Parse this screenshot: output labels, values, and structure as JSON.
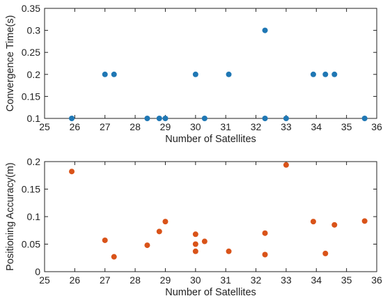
{
  "chart_data": [
    {
      "type": "scatter",
      "xlabel": "Number of Satellites",
      "ylabel": "Convergence  Time(s)",
      "xlim": [
        25,
        36
      ],
      "ylim": [
        0.1,
        0.35
      ],
      "xticks": [
        "25",
        "26",
        "27",
        "28",
        "29",
        "30",
        "31",
        "32",
        "33",
        "34",
        "35",
        "36"
      ],
      "yticks": [
        "0.1",
        "0.15",
        "0.2",
        "0.25",
        "0.3",
        "0.35"
      ],
      "grid": false,
      "color": "#1f77b4",
      "series": [
        {
          "points": [
            {
              "x": 25.9,
              "y": 0.1
            },
            {
              "x": 27.0,
              "y": 0.2
            },
            {
              "x": 27.3,
              "y": 0.2
            },
            {
              "x": 28.4,
              "y": 0.1
            },
            {
              "x": 28.8,
              "y": 0.1
            },
            {
              "x": 29.0,
              "y": 0.1
            },
            {
              "x": 30.0,
              "y": 0.2
            },
            {
              "x": 30.3,
              "y": 0.1
            },
            {
              "x": 31.1,
              "y": 0.2
            },
            {
              "x": 32.3,
              "y": 0.3
            },
            {
              "x": 32.3,
              "y": 0.1
            },
            {
              "x": 33.0,
              "y": 0.1
            },
            {
              "x": 33.9,
              "y": 0.2
            },
            {
              "x": 34.3,
              "y": 0.2
            },
            {
              "x": 34.6,
              "y": 0.2
            },
            {
              "x": 35.6,
              "y": 0.1
            }
          ]
        }
      ]
    },
    {
      "type": "scatter",
      "xlabel": "Number of Satellites",
      "ylabel": "Positioning Accuracy(m)",
      "xlim": [
        25,
        36
      ],
      "ylim": [
        0,
        0.2
      ],
      "xticks": [
        "25",
        "26",
        "27",
        "28",
        "29",
        "30",
        "31",
        "32",
        "33",
        "34",
        "35",
        "36"
      ],
      "yticks": [
        "0",
        "0.05",
        "0.1",
        "0.15",
        "0.2"
      ],
      "grid": false,
      "color": "#d95319",
      "series": [
        {
          "points": [
            {
              "x": 25.9,
              "y": 0.182
            },
            {
              "x": 27.0,
              "y": 0.057
            },
            {
              "x": 27.3,
              "y": 0.027
            },
            {
              "x": 28.4,
              "y": 0.048
            },
            {
              "x": 28.8,
              "y": 0.073
            },
            {
              "x": 29.0,
              "y": 0.091
            },
            {
              "x": 30.0,
              "y": 0.068
            },
            {
              "x": 30.0,
              "y": 0.05
            },
            {
              "x": 30.0,
              "y": 0.037
            },
            {
              "x": 30.3,
              "y": 0.055
            },
            {
              "x": 31.1,
              "y": 0.037
            },
            {
              "x": 32.3,
              "y": 0.07
            },
            {
              "x": 32.3,
              "y": 0.031
            },
            {
              "x": 33.0,
              "y": 0.194
            },
            {
              "x": 33.9,
              "y": 0.091
            },
            {
              "x": 34.3,
              "y": 0.033
            },
            {
              "x": 34.6,
              "y": 0.085
            },
            {
              "x": 35.6,
              "y": 0.092
            }
          ]
        }
      ]
    }
  ]
}
